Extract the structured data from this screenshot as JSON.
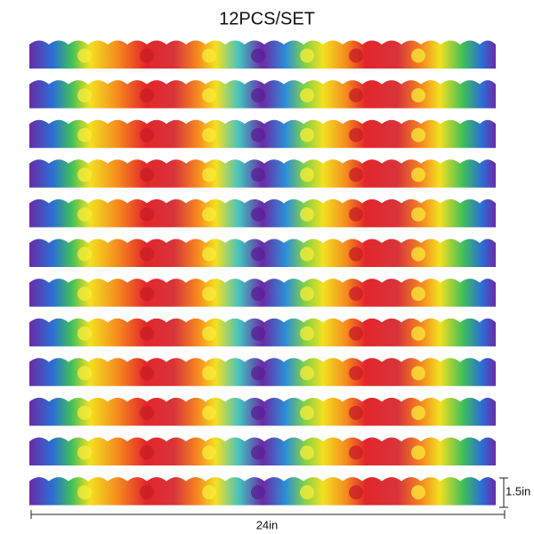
{
  "header": {
    "title": "12PCS/SET"
  },
  "dimensions": {
    "width": "24in",
    "height": "1.5in"
  }
}
